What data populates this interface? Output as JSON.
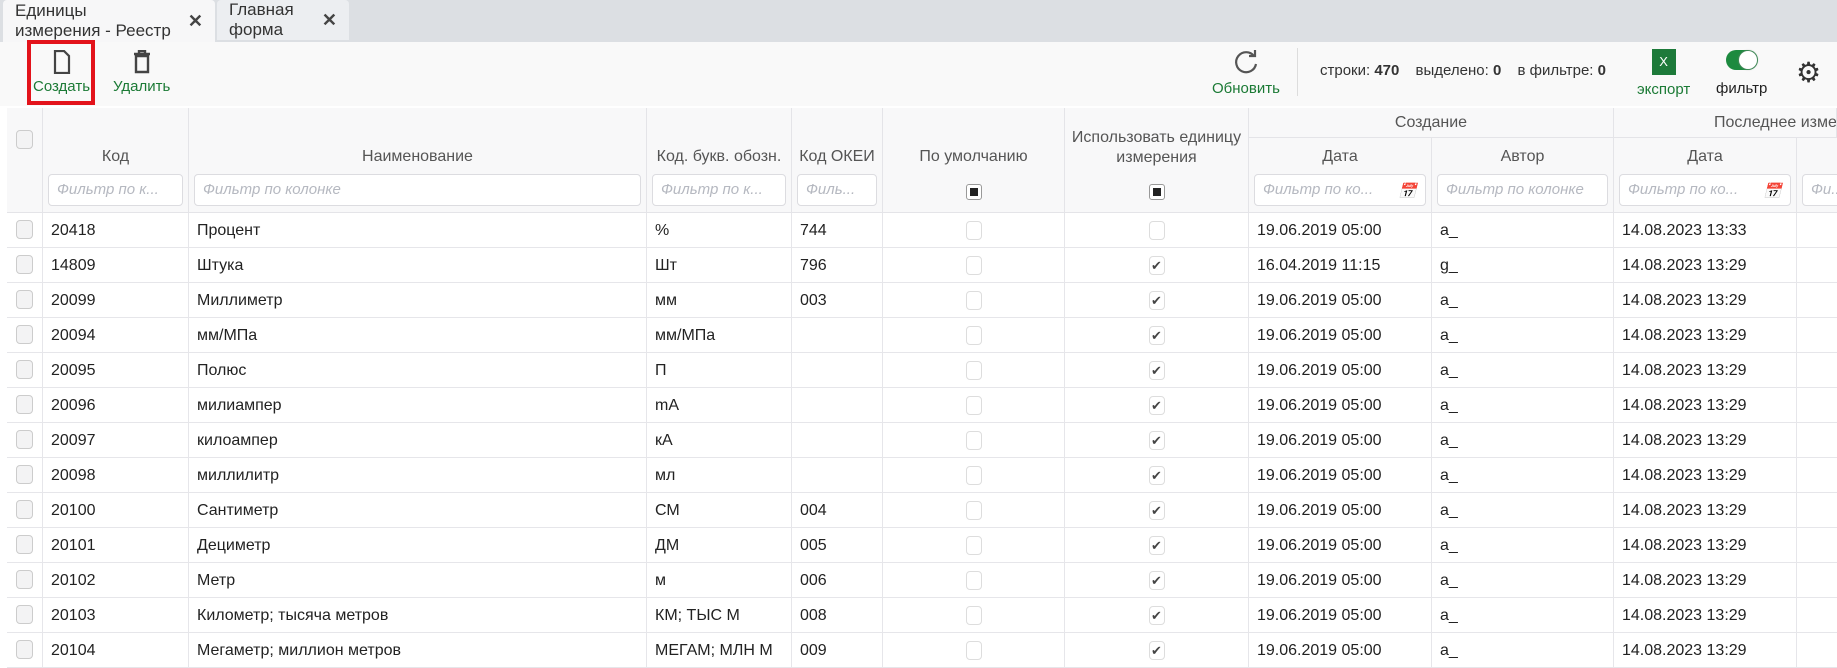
{
  "tabs": [
    {
      "label": "Единицы измерения - Реестр",
      "active": true
    },
    {
      "label": "Главная форма",
      "active": false
    }
  ],
  "toolbar": {
    "create": "Создать",
    "delete": "Удалить",
    "refresh": "Обновить",
    "rows_label": "строки:",
    "rows": "470",
    "selected_label": "выделено:",
    "selected": "0",
    "in_filter_label": "в фильтре:",
    "in_filter": "0",
    "export": "экспорт",
    "filter": "фильтр",
    "filter_on": true
  },
  "colors": {
    "accent": "#1b7a35",
    "highlight": "#e3131b"
  },
  "columns": {
    "code": "Код",
    "name": "Наименование",
    "letter": "Код. букв. обозн.",
    "okei": "Код ОКЕИ",
    "default": "По умолчанию",
    "use": "Использовать единицу измерения",
    "created": "Создание",
    "date": "Дата",
    "author": "Автор",
    "modified": "Последнее изме"
  },
  "filters": {
    "short": "Фильтр по к...",
    "full": "Фильтр по колонке",
    "letter": "Фильтр по к...",
    "okei": "Филь...",
    "date": "Фильтр по ко...",
    "author": "Фильтр по колонке",
    "mdate": "Фильтр по ко...",
    "next": "Фи..."
  },
  "rows": [
    {
      "code": "20418",
      "name": "Процент",
      "letter": "%",
      "okei": "744",
      "def": false,
      "use": false,
      "cdate": "19.06.2019 05:00",
      "author": "a_",
      "mdate": "14.08.2023 13:33"
    },
    {
      "code": "14809",
      "name": "Штука",
      "letter": "Шт",
      "okei": "796",
      "def": false,
      "use": true,
      "cdate": "16.04.2019 11:15",
      "author": "g_",
      "mdate": "14.08.2023 13:29"
    },
    {
      "code": "20099",
      "name": "Миллиметр",
      "letter": "мм",
      "okei": "003",
      "def": false,
      "use": true,
      "cdate": "19.06.2019 05:00",
      "author": "a_",
      "mdate": "14.08.2023 13:29"
    },
    {
      "code": "20094",
      "name": "мм/МПа",
      "letter": "мм/МПа",
      "okei": "",
      "def": false,
      "use": true,
      "cdate": "19.06.2019 05:00",
      "author": "a_",
      "mdate": "14.08.2023 13:29"
    },
    {
      "code": "20095",
      "name": "Полюс",
      "letter": "П",
      "okei": "",
      "def": false,
      "use": true,
      "cdate": "19.06.2019 05:00",
      "author": "a_",
      "mdate": "14.08.2023 13:29"
    },
    {
      "code": "20096",
      "name": "милиампер",
      "letter": "mA",
      "okei": "",
      "def": false,
      "use": true,
      "cdate": "19.06.2019 05:00",
      "author": "a_",
      "mdate": "14.08.2023 13:29"
    },
    {
      "code": "20097",
      "name": "килоампер",
      "letter": "кА",
      "okei": "",
      "def": false,
      "use": true,
      "cdate": "19.06.2019 05:00",
      "author": "a_",
      "mdate": "14.08.2023 13:29"
    },
    {
      "code": "20098",
      "name": "миллилитр",
      "letter": "мл",
      "okei": "",
      "def": false,
      "use": true,
      "cdate": "19.06.2019 05:00",
      "author": "a_",
      "mdate": "14.08.2023 13:29"
    },
    {
      "code": "20100",
      "name": "Сантиметр",
      "letter": "СМ",
      "okei": "004",
      "def": false,
      "use": true,
      "cdate": "19.06.2019 05:00",
      "author": "a_",
      "mdate": "14.08.2023 13:29"
    },
    {
      "code": "20101",
      "name": "Дециметр",
      "letter": "ДМ",
      "okei": "005",
      "def": false,
      "use": true,
      "cdate": "19.06.2019 05:00",
      "author": "a_",
      "mdate": "14.08.2023 13:29"
    },
    {
      "code": "20102",
      "name": "Метр",
      "letter": "м",
      "okei": "006",
      "def": false,
      "use": true,
      "cdate": "19.06.2019 05:00",
      "author": "a_",
      "mdate": "14.08.2023 13:29"
    },
    {
      "code": "20103",
      "name": "Километр; тысяча метров",
      "letter": "КМ; ТЫС М",
      "okei": "008",
      "def": false,
      "use": true,
      "cdate": "19.06.2019 05:00",
      "author": "a_",
      "mdate": "14.08.2023 13:29"
    },
    {
      "code": "20104",
      "name": "Мегаметр; миллион метров",
      "letter": "МЕГАМ; МЛН М",
      "okei": "009",
      "def": false,
      "use": true,
      "cdate": "19.06.2019 05:00",
      "author": "a_",
      "mdate": "14.08.2023 13:29"
    }
  ]
}
